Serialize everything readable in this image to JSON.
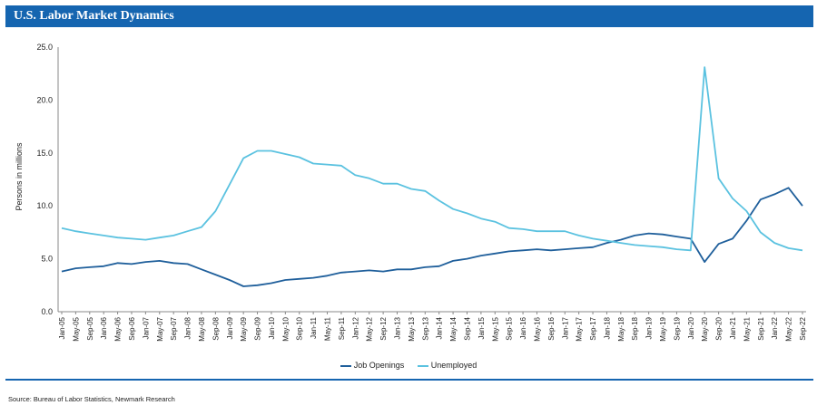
{
  "header": {
    "title": "U.S. Labor Market Dynamics"
  },
  "source": "Source: Bureau of Labor Statistics, Newmark Research",
  "colors": {
    "title_bar": "#1565b0",
    "job_openings": "#1f5f9b",
    "unemployed": "#5bc2e0"
  },
  "chart_data": {
    "type": "line",
    "title": "",
    "xlabel": "",
    "ylabel": "Persons in millions",
    "ylim": [
      0,
      25
    ],
    "yticks": [
      "0.0",
      "5.0",
      "10.0",
      "15.0",
      "20.0",
      "25.0"
    ],
    "grid": false,
    "legend_position": "bottom",
    "xticks": [
      "Jan-05",
      "May-05",
      "Sep-05",
      "Jan-06",
      "May-06",
      "Sep-06",
      "Jan-07",
      "May-07",
      "Sep-07",
      "Jan-08",
      "May-08",
      "Sep-08",
      "Jan-09",
      "May-09",
      "Sep-09",
      "Jan-10",
      "May-10",
      "Sep-10",
      "Jan-11",
      "May-11",
      "Sep-11",
      "Jan-12",
      "May-12",
      "Sep-12",
      "Jan-13",
      "May-13",
      "Sep-13",
      "Jan-14",
      "May-14",
      "Sep-14",
      "Jan-15",
      "May-15",
      "Sep-15",
      "Jan-16",
      "May-16",
      "Sep-16",
      "Jan-17",
      "May-17",
      "Sep-17",
      "Jan-18",
      "May-18",
      "Sep-18",
      "Jan-19",
      "May-19",
      "Sep-19",
      "Jan-20",
      "May-20",
      "Sep-20",
      "Jan-21",
      "May-21",
      "Sep-21",
      "Jan-22",
      "May-22",
      "Sep-22"
    ],
    "series": [
      {
        "name": "Job Openings",
        "values": [
          3.8,
          4.1,
          4.2,
          4.3,
          4.6,
          4.5,
          4.7,
          4.8,
          4.6,
          4.5,
          4.0,
          3.5,
          3.0,
          2.4,
          2.5,
          2.7,
          3.0,
          3.1,
          3.2,
          3.4,
          3.7,
          3.8,
          3.9,
          3.8,
          4.0,
          4.0,
          4.2,
          4.3,
          4.8,
          5.0,
          5.3,
          5.5,
          5.7,
          5.8,
          5.9,
          5.8,
          5.9,
          6.0,
          6.1,
          6.5,
          6.8,
          7.2,
          7.4,
          7.3,
          7.1,
          6.9,
          4.7,
          6.4,
          6.9,
          8.6,
          10.6,
          11.1,
          11.7,
          10.0
        ]
      },
      {
        "name": "Unemployed",
        "values": [
          7.9,
          7.6,
          7.4,
          7.2,
          7.0,
          6.9,
          6.8,
          7.0,
          7.2,
          7.6,
          8.0,
          9.5,
          12.0,
          14.5,
          15.2,
          15.2,
          14.9,
          14.6,
          14.0,
          13.9,
          13.8,
          12.9,
          12.6,
          12.1,
          12.1,
          11.6,
          11.4,
          10.5,
          9.7,
          9.3,
          8.8,
          8.5,
          7.9,
          7.8,
          7.6,
          7.6,
          7.6,
          7.2,
          6.9,
          6.7,
          6.5,
          6.3,
          6.2,
          6.1,
          5.9,
          5.8,
          23.1,
          12.6,
          10.7,
          9.5,
          7.5,
          6.5,
          6.0,
          5.8
        ]
      }
    ]
  }
}
